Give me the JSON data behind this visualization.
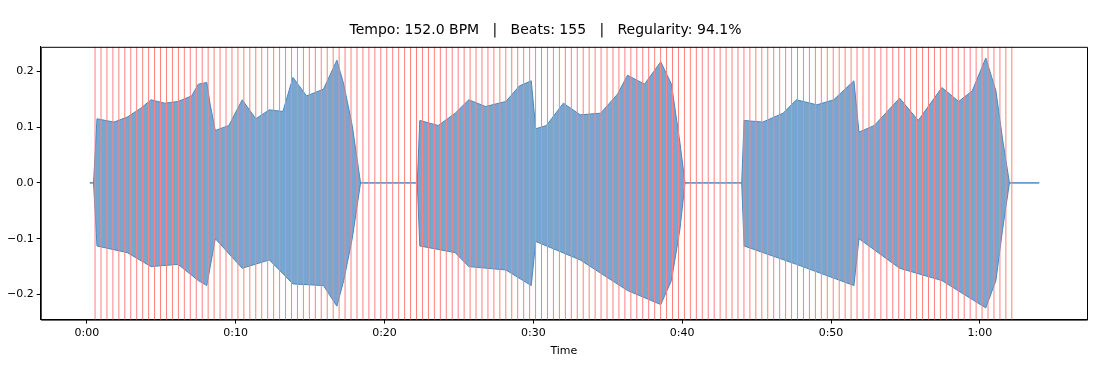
{
  "chart_data": {
    "type": "area",
    "title": "Tempo: 152.0 BPM   |   Beats: 155   |   Regularity: 94.1%",
    "xlabel": "Time",
    "xlim": [
      -3.1,
      67.2
    ],
    "ylim": [
      -0.245,
      0.244
    ],
    "xticks": [
      {
        "value": 0,
        "label": "0:00"
      },
      {
        "value": 10,
        "label": "0:10"
      },
      {
        "value": 20,
        "label": "0:20"
      },
      {
        "value": 30,
        "label": "0:30"
      },
      {
        "value": 40,
        "label": "0:40"
      },
      {
        "value": 50,
        "label": "0:50"
      },
      {
        "value": 60,
        "label": "1:00"
      }
    ],
    "yticks": [
      {
        "value": -0.2,
        "label": "−0.2"
      },
      {
        "value": -0.1,
        "label": "−0.1"
      },
      {
        "value": 0,
        "label": "0.0"
      },
      {
        "value": 0.1,
        "label": "0.1"
      },
      {
        "value": 0.2,
        "label": "0.2"
      }
    ],
    "grid": false,
    "legend": false,
    "series": [
      {
        "color": "#4a89c0",
        "x": [
          0.2,
          0.45,
          0.68,
          1.82,
          2.72,
          3.63,
          4.31,
          5.22,
          6.13,
          7.04,
          7.49,
          8.06,
          8.29,
          8.63,
          9.54,
          10.44,
          11.35,
          12.26,
          13.17,
          13.85,
          14.76,
          15.9,
          16.8,
          17.26,
          17.83,
          18.39,
          22.2,
          22.37,
          23.61,
          24.75,
          25.66,
          26.79,
          28.15,
          29.07,
          29.86,
          30.16,
          30.88,
          32.02,
          33.15,
          34.52,
          35.65,
          36.33,
          37.47,
          38.56,
          39.28,
          39.85,
          40.19,
          44.0,
          44.16,
          45.41,
          46.78,
          47.68,
          49.05,
          50.18,
          51.54,
          51.88,
          52.91,
          54.61,
          55.86,
          57.45,
          58.58,
          59.49,
          60.4,
          61.08,
          61.53,
          61.99,
          63.99
        ],
        "values": [
          0,
          0,
          0.115,
          0.109,
          0.118,
          0.134,
          0.149,
          0.143,
          0.146,
          0.156,
          0.177,
          0.18,
          0.14,
          0.094,
          0.103,
          0.149,
          0.115,
          0.131,
          0.128,
          0.189,
          0.156,
          0.168,
          0.22,
          0.177,
          0.103,
          0,
          0,
          0.112,
          0.103,
          0.125,
          0.149,
          0.137,
          0.146,
          0.174,
          0.183,
          0.097,
          0.103,
          0.143,
          0.122,
          0.125,
          0.159,
          0.193,
          0.177,
          0.217,
          0.177,
          0.072,
          0,
          0,
          0.112,
          0.109,
          0.125,
          0.149,
          0.14,
          0.149,
          0.183,
          0.091,
          0.103,
          0.152,
          0.112,
          0.171,
          0.146,
          0.165,
          0.224,
          0.165,
          0.078,
          0,
          0
        ]
      },
      {
        "color": "#4a89c0",
        "x": [
          0.2,
          0.45,
          0.68,
          2.72,
          4.31,
          6.13,
          7.49,
          8.06,
          8.63,
          10.44,
          12.26,
          13.85,
          15.9,
          16.8,
          17.26,
          17.83,
          18.39,
          22.2,
          22.37,
          24.75,
          25.66,
          28.15,
          29.86,
          30.16,
          33.15,
          36.33,
          38.56,
          39.28,
          39.85,
          40.19,
          44.0,
          44.16,
          47.68,
          51.54,
          51.88,
          54.61,
          57.45,
          60.4,
          61.08,
          61.53,
          61.99,
          63.99
        ],
        "values": [
          0,
          0,
          -0.113,
          -0.125,
          -0.15,
          -0.146,
          -0.175,
          -0.184,
          -0.1,
          -0.153,
          -0.138,
          -0.181,
          -0.184,
          -0.221,
          -0.175,
          -0.1,
          0,
          0,
          -0.113,
          -0.125,
          -0.15,
          -0.156,
          -0.184,
          -0.105,
          -0.138,
          -0.193,
          -0.218,
          -0.175,
          -0.083,
          0,
          0,
          -0.113,
          -0.146,
          -0.184,
          -0.1,
          -0.153,
          -0.175,
          -0.224,
          -0.175,
          -0.083,
          0,
          0
        ]
      }
    ],
    "ref_lines": [
      {
        "axis": "x",
        "value": 0.55,
        "color": "#ff8080"
      },
      {
        "axis": "x",
        "value": 0.95,
        "color": "#ff8080"
      },
      {
        "axis": "x",
        "value": 1.35,
        "color": "#ff8080"
      },
      {
        "axis": "x",
        "value": 1.75,
        "color": "#ff8080"
      },
      {
        "axis": "x",
        "value": 2.15,
        "color": "#ff8080"
      },
      {
        "axis": "x",
        "value": 2.55,
        "color": "#ff8080"
      },
      {
        "axis": "x",
        "value": 2.95,
        "color": "#ff8080"
      },
      {
        "axis": "x",
        "value": 3.35,
        "color": "#ff8080"
      },
      {
        "axis": "x",
        "value": 3.75,
        "color": "#ff8080"
      },
      {
        "axis": "x",
        "value": 4.15,
        "color": "#ff8080"
      },
      {
        "axis": "x",
        "value": 4.55,
        "color": "#ff8080"
      },
      {
        "axis": "x",
        "value": 4.95,
        "color": "#ff8080"
      },
      {
        "axis": "x",
        "value": 5.35,
        "color": "#ff8080"
      },
      {
        "axis": "x",
        "value": 5.75,
        "color": "#ff8080"
      },
      {
        "axis": "x",
        "value": 6.15,
        "color": "#ff8080"
      },
      {
        "axis": "x",
        "value": 6.55,
        "color": "#ff8080"
      },
      {
        "axis": "x",
        "value": 6.95,
        "color": "#ff8080"
      },
      {
        "axis": "x",
        "value": 7.35,
        "color": "#ff8080"
      },
      {
        "axis": "x",
        "value": 7.75,
        "color": "#ff8080"
      },
      {
        "axis": "x",
        "value": 8.15,
        "color": "#ff8080"
      },
      {
        "axis": "x",
        "value": 8.55,
        "color": "#ff8080"
      },
      {
        "axis": "x",
        "value": 8.95,
        "color": "#ff8080"
      },
      {
        "axis": "x",
        "value": 9.35,
        "color": "#ff8080"
      },
      {
        "axis": "x",
        "value": 9.75,
        "color": "#ff8080"
      },
      {
        "axis": "x",
        "value": 10.15,
        "color": "#ff8080"
      },
      {
        "axis": "x",
        "value": 10.55,
        "color": "#ff8080"
      },
      {
        "axis": "x",
        "value": 10.95,
        "color": "#ff8080"
      },
      {
        "axis": "x",
        "value": 11.35,
        "color": "#ff8080"
      },
      {
        "axis": "x",
        "value": 11.75,
        "color": "#ff8080"
      },
      {
        "axis": "x",
        "value": 12.15,
        "color": "#ff8080"
      },
      {
        "axis": "x",
        "value": 12.55,
        "color": "#ff8080"
      },
      {
        "axis": "x",
        "value": 12.95,
        "color": "#ff8080"
      },
      {
        "axis": "x",
        "value": 13.35,
        "color": "#ff8080"
      },
      {
        "axis": "x",
        "value": 13.75,
        "color": "#ff8080"
      },
      {
        "axis": "x",
        "value": 14.15,
        "color": "#ff8080"
      },
      {
        "axis": "x",
        "value": 14.55,
        "color": "#ff8080"
      },
      {
        "axis": "x",
        "value": 14.95,
        "color": "#ff8080"
      },
      {
        "axis": "x",
        "value": 15.35,
        "color": "#ff8080"
      },
      {
        "axis": "x",
        "value": 15.75,
        "color": "#ff8080"
      },
      {
        "axis": "x",
        "value": 16.15,
        "color": "#ff8080"
      },
      {
        "axis": "x",
        "value": 16.55,
        "color": "#ff8080"
      },
      {
        "axis": "x",
        "value": 16.95,
        "color": "#ff8080"
      },
      {
        "axis": "x",
        "value": 17.35,
        "color": "#ff8080"
      },
      {
        "axis": "x",
        "value": 17.75,
        "color": "#ff8080"
      },
      {
        "axis": "x",
        "value": 18.15,
        "color": "#ff8080"
      },
      {
        "axis": "x",
        "value": 18.55,
        "color": "#ff8080"
      },
      {
        "axis": "x",
        "value": 18.95,
        "color": "#ff8080"
      },
      {
        "axis": "x",
        "value": 19.35,
        "color": "#ff8080"
      },
      {
        "axis": "x",
        "value": 19.75,
        "color": "#ff8080"
      },
      {
        "axis": "x",
        "value": 20.15,
        "color": "#ff8080"
      },
      {
        "axis": "x",
        "value": 20.55,
        "color": "#ff8080"
      },
      {
        "axis": "x",
        "value": 20.95,
        "color": "#ff8080"
      },
      {
        "axis": "x",
        "value": 21.35,
        "color": "#ff8080"
      },
      {
        "axis": "x",
        "value": 21.75,
        "color": "#ff8080"
      },
      {
        "axis": "x",
        "value": 22.15,
        "color": "#ff8080"
      },
      {
        "axis": "x",
        "value": 22.55,
        "color": "#ff8080"
      },
      {
        "axis": "x",
        "value": 22.95,
        "color": "#ff8080"
      },
      {
        "axis": "x",
        "value": 23.35,
        "color": "#ff8080"
      },
      {
        "axis": "x",
        "value": 23.75,
        "color": "#ff8080"
      },
      {
        "axis": "x",
        "value": 24.15,
        "color": "#ff8080"
      },
      {
        "axis": "x",
        "value": 24.55,
        "color": "#ff8080"
      },
      {
        "axis": "x",
        "value": 24.95,
        "color": "#ff8080"
      },
      {
        "axis": "x",
        "value": 25.35,
        "color": "#ff8080"
      },
      {
        "axis": "x",
        "value": 25.75,
        "color": "#ff8080"
      },
      {
        "axis": "x",
        "value": 26.15,
        "color": "#ff8080"
      },
      {
        "axis": "x",
        "value": 26.55,
        "color": "#ff8080"
      },
      {
        "axis": "x",
        "value": 26.95,
        "color": "#ff8080"
      },
      {
        "axis": "x",
        "value": 27.35,
        "color": "#ff8080"
      },
      {
        "axis": "x",
        "value": 27.75,
        "color": "#ff8080"
      },
      {
        "axis": "x",
        "value": 28.15,
        "color": "#ff8080"
      },
      {
        "axis": "x",
        "value": 28.55,
        "color": "#ff8080"
      },
      {
        "axis": "x",
        "value": 28.95,
        "color": "#ff8080"
      },
      {
        "axis": "x",
        "value": 29.35,
        "color": "#ff8080"
      },
      {
        "axis": "x",
        "value": 29.75,
        "color": "#ff8080"
      },
      {
        "axis": "x",
        "value": 30.15,
        "color": "#ff8080"
      },
      {
        "axis": "x",
        "value": 30.55,
        "color": "#ff8080"
      },
      {
        "axis": "x",
        "value": 30.95,
        "color": "#ff8080"
      },
      {
        "axis": "x",
        "value": 31.35,
        "color": "#ff8080"
      },
      {
        "axis": "x",
        "value": 31.75,
        "color": "#ff8080"
      },
      {
        "axis": "x",
        "value": 32.15,
        "color": "#ff8080"
      },
      {
        "axis": "x",
        "value": 32.55,
        "color": "#ff8080"
      },
      {
        "axis": "x",
        "value": 32.95,
        "color": "#ff8080"
      },
      {
        "axis": "x",
        "value": 33.35,
        "color": "#ff8080"
      },
      {
        "axis": "x",
        "value": 33.75,
        "color": "#ff8080"
      },
      {
        "axis": "x",
        "value": 34.15,
        "color": "#ff8080"
      },
      {
        "axis": "x",
        "value": 34.55,
        "color": "#ff8080"
      },
      {
        "axis": "x",
        "value": 34.95,
        "color": "#ff8080"
      },
      {
        "axis": "x",
        "value": 35.35,
        "color": "#ff8080"
      },
      {
        "axis": "x",
        "value": 35.75,
        "color": "#ff8080"
      },
      {
        "axis": "x",
        "value": 36.15,
        "color": "#ff8080"
      },
      {
        "axis": "x",
        "value": 36.55,
        "color": "#ff8080"
      },
      {
        "axis": "x",
        "value": 36.95,
        "color": "#ff8080"
      },
      {
        "axis": "x",
        "value": 37.35,
        "color": "#ff8080"
      },
      {
        "axis": "x",
        "value": 37.75,
        "color": "#ff8080"
      },
      {
        "axis": "x",
        "value": 38.15,
        "color": "#ff8080"
      },
      {
        "axis": "x",
        "value": 38.55,
        "color": "#ff8080"
      },
      {
        "axis": "x",
        "value": 38.95,
        "color": "#ff8080"
      },
      {
        "axis": "x",
        "value": 39.35,
        "color": "#ff8080"
      },
      {
        "axis": "x",
        "value": 39.75,
        "color": "#ff8080"
      },
      {
        "axis": "x",
        "value": 40.15,
        "color": "#ff8080"
      },
      {
        "axis": "x",
        "value": 40.55,
        "color": "#ff8080"
      },
      {
        "axis": "x",
        "value": 40.95,
        "color": "#ff8080"
      },
      {
        "axis": "x",
        "value": 41.35,
        "color": "#ff8080"
      },
      {
        "axis": "x",
        "value": 41.75,
        "color": "#ff8080"
      },
      {
        "axis": "x",
        "value": 42.15,
        "color": "#ff8080"
      },
      {
        "axis": "x",
        "value": 42.55,
        "color": "#ff8080"
      },
      {
        "axis": "x",
        "value": 42.95,
        "color": "#ff8080"
      },
      {
        "axis": "x",
        "value": 43.35,
        "color": "#ff8080"
      },
      {
        "axis": "x",
        "value": 43.75,
        "color": "#ff8080"
      },
      {
        "axis": "x",
        "value": 44.15,
        "color": "#ff8080"
      },
      {
        "axis": "x",
        "value": 44.55,
        "color": "#ff8080"
      },
      {
        "axis": "x",
        "value": 44.95,
        "color": "#ff8080"
      },
      {
        "axis": "x",
        "value": 45.35,
        "color": "#ff8080"
      },
      {
        "axis": "x",
        "value": 45.75,
        "color": "#ff8080"
      },
      {
        "axis": "x",
        "value": 46.15,
        "color": "#ff8080"
      },
      {
        "axis": "x",
        "value": 46.55,
        "color": "#ff8080"
      },
      {
        "axis": "x",
        "value": 46.95,
        "color": "#ff8080"
      },
      {
        "axis": "x",
        "value": 47.35,
        "color": "#ff8080"
      },
      {
        "axis": "x",
        "value": 47.75,
        "color": "#ff8080"
      },
      {
        "axis": "x",
        "value": 48.15,
        "color": "#ff8080"
      },
      {
        "axis": "x",
        "value": 48.55,
        "color": "#ff8080"
      },
      {
        "axis": "x",
        "value": 48.95,
        "color": "#ff8080"
      },
      {
        "axis": "x",
        "value": 49.35,
        "color": "#ff8080"
      },
      {
        "axis": "x",
        "value": 49.75,
        "color": "#ff8080"
      },
      {
        "axis": "x",
        "value": 50.15,
        "color": "#ff8080"
      },
      {
        "axis": "x",
        "value": 50.55,
        "color": "#ff8080"
      },
      {
        "axis": "x",
        "value": 50.95,
        "color": "#ff8080"
      },
      {
        "axis": "x",
        "value": 51.35,
        "color": "#ff8080"
      },
      {
        "axis": "x",
        "value": 51.75,
        "color": "#ff8080"
      },
      {
        "axis": "x",
        "value": 52.15,
        "color": "#ff8080"
      },
      {
        "axis": "x",
        "value": 52.55,
        "color": "#ff8080"
      },
      {
        "axis": "x",
        "value": 52.95,
        "color": "#ff8080"
      },
      {
        "axis": "x",
        "value": 53.35,
        "color": "#ff8080"
      },
      {
        "axis": "x",
        "value": 53.75,
        "color": "#ff8080"
      },
      {
        "axis": "x",
        "value": 54.15,
        "color": "#ff8080"
      },
      {
        "axis": "x",
        "value": 54.55,
        "color": "#ff8080"
      },
      {
        "axis": "x",
        "value": 54.95,
        "color": "#ff8080"
      },
      {
        "axis": "x",
        "value": 55.35,
        "color": "#ff8080"
      },
      {
        "axis": "x",
        "value": 55.75,
        "color": "#ff8080"
      },
      {
        "axis": "x",
        "value": 56.15,
        "color": "#ff8080"
      },
      {
        "axis": "x",
        "value": 56.55,
        "color": "#ff8080"
      },
      {
        "axis": "x",
        "value": 56.95,
        "color": "#ff8080"
      },
      {
        "axis": "x",
        "value": 57.35,
        "color": "#ff8080"
      },
      {
        "axis": "x",
        "value": 57.75,
        "color": "#ff8080"
      },
      {
        "axis": "x",
        "value": 58.15,
        "color": "#ff8080"
      },
      {
        "axis": "x",
        "value": 58.55,
        "color": "#ff8080"
      },
      {
        "axis": "x",
        "value": 58.95,
        "color": "#ff8080"
      },
      {
        "axis": "x",
        "value": 59.35,
        "color": "#ff8080"
      },
      {
        "axis": "x",
        "value": 59.75,
        "color": "#ff8080"
      },
      {
        "axis": "x",
        "value": 60.15,
        "color": "#ff8080"
      },
      {
        "axis": "x",
        "value": 60.55,
        "color": "#ff8080"
      },
      {
        "axis": "x",
        "value": 60.95,
        "color": "#ff8080"
      },
      {
        "axis": "x",
        "value": 61.35,
        "color": "#ff8080"
      },
      {
        "axis": "x",
        "value": 61.75,
        "color": "#ff8080"
      },
      {
        "axis": "x",
        "value": 62.15,
        "color": "#ff8080"
      }
    ]
  }
}
